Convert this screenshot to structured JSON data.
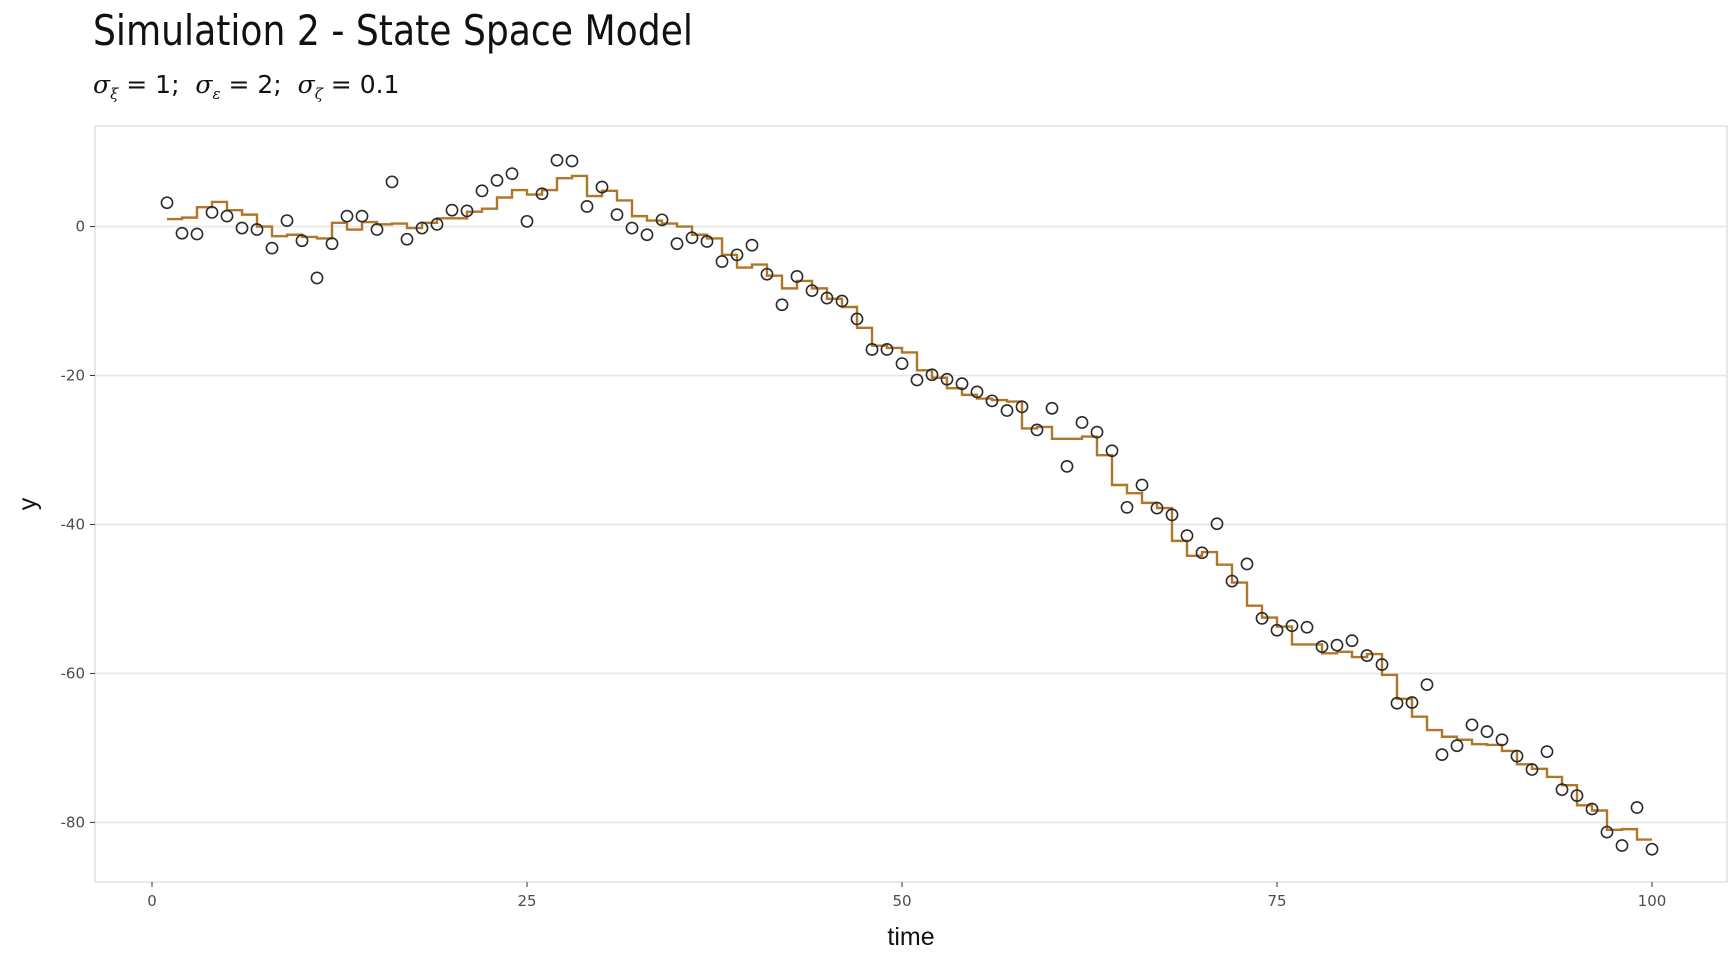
{
  "chart_data": {
    "type": "line+scatter",
    "title": "Simulation 2 - State Space Model",
    "subtitle": {
      "parts": [
        {
          "symbol": "σ",
          "sub": "ξ",
          "text": " = 1;"
        },
        {
          "symbol": "σ",
          "sub": "ε",
          "text": " = 2;"
        },
        {
          "symbol": "σ",
          "sub": "ζ",
          "text": " = 0.1"
        }
      ]
    },
    "xlabel": "time",
    "ylabel": "y",
    "xlim": [
      -3.8,
      105
    ],
    "ylim": [
      -88,
      13.5
    ],
    "x_ticks": [
      0,
      25,
      50,
      75,
      100
    ],
    "x_tick_labels": [
      "0",
      "25",
      "50",
      "75",
      "100"
    ],
    "y_ticks": [
      0,
      -20,
      -40,
      -60,
      -80
    ],
    "y_tick_labels": [
      "0",
      "-20",
      "-40",
      "-60",
      "-80"
    ],
    "grid": "horizontal major only",
    "colors": {
      "state_line": "#b0772a",
      "points": "#2b2b2b",
      "grid": "#e6e6e6",
      "panel_border": "#d9d9d9"
    },
    "series": [
      {
        "type": "step",
        "values": [
          1.0,
          1.2,
          2.6,
          3.3,
          2.2,
          1.6,
          0.0,
          -1.3,
          -1.1,
          -1.4,
          -1.6,
          0.5,
          -0.4,
          0.6,
          0.3,
          0.4,
          -0.2,
          0.5,
          1.1,
          1.1,
          2.0,
          2.4,
          3.9,
          4.9,
          4.3,
          4.9,
          6.5,
          6.8,
          4.1,
          4.8,
          3.5,
          1.4,
          0.8,
          0.4,
          0.0,
          -1.1,
          -1.6,
          -3.8,
          -5.5,
          -5.1,
          -6.6,
          -8.3,
          -7.3,
          -8.3,
          -9.7,
          -10.8,
          -13.6,
          -16.0,
          -16.3,
          -16.9,
          -19.3,
          -20.3,
          -21.7,
          -22.6,
          -23.1,
          -23.3,
          -23.5,
          -27.1,
          -26.9,
          -28.5,
          -28.5,
          -28.2,
          -30.7,
          -34.7,
          -35.8,
          -37.1,
          -37.8,
          -42.2,
          -44.2,
          -43.7,
          -45.4,
          -47.8,
          -50.9,
          -52.5,
          -53.7,
          -56.1,
          -56.1,
          -57.3,
          -57.1,
          -57.8,
          -57.4,
          -60.2,
          -63.4,
          -65.8,
          -67.6,
          -68.5,
          -68.9,
          -69.5,
          -69.6,
          -70.4,
          -72.2,
          -72.8,
          -73.9,
          -75.0,
          -77.7,
          -78.4,
          -81.0,
          -80.9,
          -82.3
        ]
      },
      {
        "type": "scatter",
        "values": [
          3.2,
          -0.9,
          -1.0,
          1.9,
          1.4,
          -0.2,
          -0.4,
          -2.9,
          0.8,
          -1.9,
          -6.9,
          -2.3,
          1.4,
          1.4,
          -0.4,
          6.0,
          -1.7,
          -0.2,
          0.3,
          2.2,
          2.1,
          4.8,
          6.2,
          7.1,
          0.7,
          4.4,
          8.9,
          8.8,
          2.7,
          5.3,
          1.6,
          -0.2,
          -1.1,
          0.9,
          -2.3,
          -1.5,
          -2.0,
          -4.7,
          -3.8,
          -2.5,
          -6.4,
          -10.5,
          -6.7,
          -8.6,
          -9.6,
          -10.0,
          -12.4,
          -16.5,
          -16.5,
          -18.4,
          -20.6,
          -19.9,
          -20.5,
          -21.1,
          -22.2,
          -23.4,
          -24.7,
          -24.2,
          -27.3,
          -24.4,
          -32.2,
          -26.3,
          -27.6,
          -30.1,
          -37.7,
          -34.7,
          -37.8,
          -38.7,
          -41.5,
          -43.8,
          -39.9,
          -47.6,
          -45.3,
          -52.6,
          -54.2,
          -53.6,
          -53.8,
          -56.4,
          -56.2,
          -55.6,
          -57.6,
          -58.8,
          -64.0,
          -63.9,
          -61.5,
          -70.9,
          -69.7,
          -66.9,
          -67.8,
          -68.9,
          -71.1,
          -72.9,
          -70.5,
          -75.6,
          -76.4,
          -78.2,
          -81.3,
          -83.1,
          -78.0,
          -83.6
        ]
      }
    ]
  }
}
